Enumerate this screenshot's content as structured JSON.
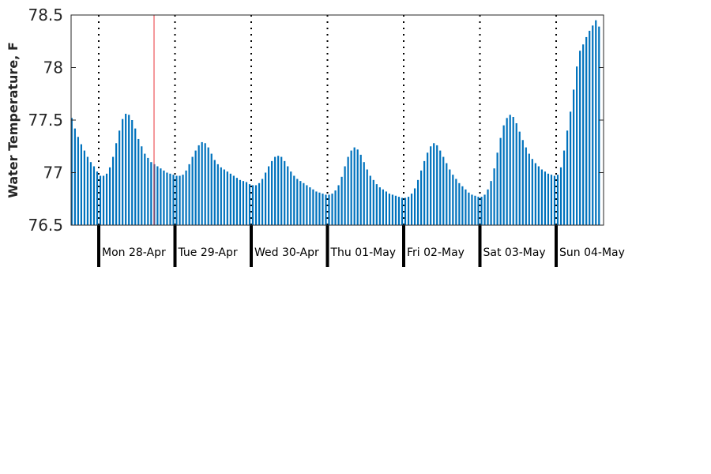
{
  "chart_data": {
    "type": "bar",
    "ylabel": "Water Temperature, F",
    "ylim": [
      76.5,
      78.5
    ],
    "yticks": [
      76.5,
      77,
      77.5,
      78,
      78.5
    ],
    "ytick_labels": [
      "76.5",
      "77",
      "77.5",
      "78",
      "78.5"
    ],
    "bar_color": "#0072bd",
    "day_labels": [
      "Mon 28-Apr",
      "Tue 29-Apr",
      "Wed 30-Apr",
      "Thu 01-May",
      "Fri 02-May",
      "Sat 03-May",
      "Sun 04-May"
    ],
    "samples_per_day": 24,
    "start_offset_hours": 9,
    "values": [
      77.52,
      77.42,
      77.34,
      77.27,
      77.21,
      77.15,
      77.1,
      77.06,
      77.01,
      76.97,
      76.97,
      76.99,
      77.05,
      77.15,
      77.28,
      77.4,
      77.51,
      77.56,
      77.55,
      77.5,
      77.42,
      77.32,
      77.25,
      77.18,
      77.14,
      77.1,
      77.08,
      77.06,
      77.04,
      77.02,
      77.0,
      76.99,
      76.98,
      76.97,
      76.97,
      76.98,
      77.02,
      77.08,
      77.15,
      77.21,
      77.26,
      77.29,
      77.28,
      77.24,
      77.18,
      77.12,
      77.08,
      77.05,
      77.03,
      77.01,
      76.99,
      76.97,
      76.95,
      76.93,
      76.92,
      76.91,
      76.89,
      76.88,
      76.88,
      76.9,
      76.94,
      77.0,
      77.06,
      77.11,
      77.15,
      77.16,
      77.15,
      77.11,
      77.06,
      77.01,
      76.97,
      76.94,
      76.92,
      76.9,
      76.88,
      76.86,
      76.84,
      76.82,
      76.81,
      76.8,
      76.79,
      76.79,
      76.8,
      76.83,
      76.88,
      76.96,
      77.06,
      77.15,
      77.21,
      77.24,
      77.22,
      77.17,
      77.1,
      77.03,
      76.97,
      76.93,
      76.89,
      76.86,
      76.84,
      76.82,
      76.8,
      76.79,
      76.78,
      76.77,
      76.76,
      76.76,
      76.77,
      76.8,
      76.85,
      76.93,
      77.02,
      77.11,
      77.19,
      77.25,
      77.28,
      77.26,
      77.21,
      77.15,
      77.09,
      77.03,
      76.98,
      76.94,
      76.9,
      76.87,
      76.84,
      76.81,
      76.79,
      76.78,
      76.77,
      76.77,
      76.79,
      76.84,
      76.92,
      77.04,
      77.19,
      77.33,
      77.45,
      77.52,
      77.55,
      77.53,
      77.47,
      77.39,
      77.31,
      77.24,
      77.18,
      77.13,
      77.09,
      77.06,
      77.03,
      77.01,
      76.99,
      76.98,
      76.97,
      76.98,
      77.05,
      77.21,
      77.4,
      77.58,
      77.79,
      78.01,
      78.16,
      78.22,
      78.29,
      78.35,
      78.4,
      78.45,
      78.39
    ]
  }
}
